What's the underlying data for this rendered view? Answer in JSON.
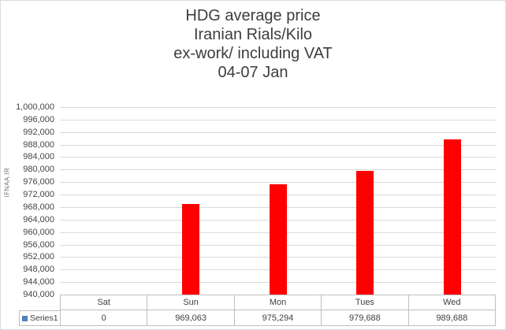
{
  "chart_data": {
    "type": "bar",
    "title_lines": [
      "HDG average price",
      "Iranian Rials/Kilo",
      "ex-work/ including VAT",
      "04-07 Jan"
    ],
    "categories": [
      "Sat",
      "Sun",
      "Mon",
      "Tues",
      "Wed"
    ],
    "series": [
      {
        "name": "Series1",
        "values": [
          0,
          969063,
          975294,
          979688,
          989688
        ]
      }
    ],
    "value_labels": [
      "0",
      "969,063",
      "975,294",
      "979,688",
      "989,688"
    ],
    "ylabel": "IFNAA.IR",
    "ylim": [
      940000,
      1000000
    ],
    "ytick_step": 4000,
    "grid": true,
    "legend_position": "data-table-stub",
    "colors": {
      "bar": "#ff0000",
      "legend_key": "#4f81bd",
      "gridline": "#d9d9d9",
      "table_border": "#bfbfbf",
      "title_text": "#3d3d3d",
      "axis_text": "#444444",
      "background": "#ffffff"
    }
  }
}
